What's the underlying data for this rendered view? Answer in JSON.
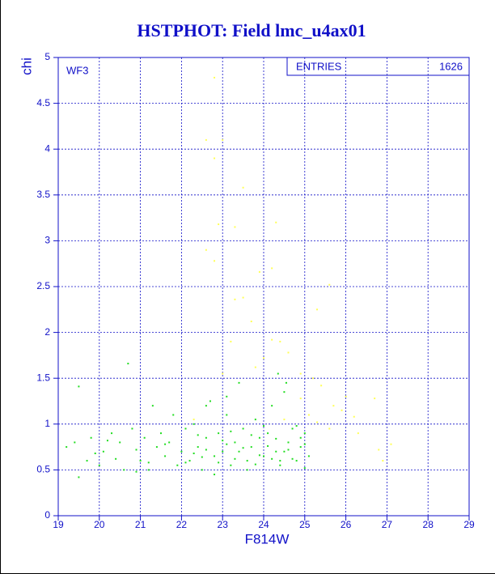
{
  "chart_data": {
    "type": "scatter",
    "title": "HSTPHOT: Field lmc_u4ax01",
    "x_label": "F814W",
    "y_label": "chi",
    "panel_label": "WF3",
    "stats_label": "ENTRIES",
    "stats_value": "1626",
    "xlim": [
      19,
      29
    ],
    "xticks": [
      19,
      20,
      21,
      22,
      23,
      24,
      25,
      26,
      27,
      28,
      29
    ],
    "ylim": [
      0,
      5
    ],
    "yticks": [
      0,
      0.5,
      1,
      1.5,
      2,
      2.5,
      3,
      3.5,
      4,
      4.5,
      5
    ],
    "grid": true,
    "axis_color": "#1010c8",
    "series": [
      {
        "color": "#22dd22",
        "x": [
          19.2,
          19.4,
          19.5,
          19.5,
          19.7,
          19.8,
          20.0,
          20.1,
          20.3,
          20.4,
          20.5,
          20.6,
          20.7,
          20.8,
          20.9,
          21.0,
          21.1,
          21.2,
          21.3,
          21.4,
          21.5,
          21.6,
          21.7,
          21.8,
          21.9,
          22.0,
          22.1,
          22.2,
          22.3,
          22.4,
          22.5,
          22.6,
          22.7,
          22.8,
          22.9,
          23.0,
          23.1,
          23.2,
          23.3,
          23.4,
          23.5,
          23.6,
          23.7,
          23.8,
          23.9,
          24.0,
          24.1,
          24.2,
          24.3,
          24.4,
          24.5,
          24.6,
          24.7,
          24.8,
          24.9,
          25.0,
          25.1,
          22.3,
          22.6,
          22.9,
          23.1,
          23.3,
          23.5,
          23.7,
          23.9,
          24.1,
          24.3,
          24.5,
          24.7,
          24.9,
          25.0,
          22.4,
          22.8,
          23.2,
          23.6,
          24.0,
          24.4,
          24.8,
          22.1,
          22.5,
          23.0,
          23.4,
          23.8,
          24.2,
          24.6,
          25.0,
          21.2,
          21.6,
          20.9,
          20.2,
          19.9,
          24.35,
          24.55,
          23.1,
          22.6
        ],
        "values": [
          0.75,
          0.8,
          1.41,
          0.42,
          0.6,
          0.85,
          0.55,
          0.7,
          0.9,
          0.62,
          0.8,
          0.5,
          1.66,
          0.95,
          0.72,
          0.6,
          0.85,
          0.5,
          1.2,
          0.75,
          0.9,
          0.65,
          0.8,
          1.1,
          0.55,
          0.7,
          0.95,
          0.6,
          1.0,
          0.75,
          0.5,
          0.85,
          1.25,
          0.65,
          0.9,
          0.7,
          1.1,
          0.55,
          0.8,
          1.45,
          0.95,
          0.6,
          0.75,
          1.05,
          0.85,
          0.65,
          0.9,
          1.2,
          0.7,
          0.55,
          1.35,
          0.8,
          0.95,
          0.6,
          0.75,
          0.9,
          0.65,
          0.68,
          0.72,
          0.58,
          0.78,
          0.62,
          0.74,
          0.88,
          0.66,
          0.76,
          0.84,
          0.7,
          0.62,
          0.85,
          0.52,
          0.88,
          0.45,
          0.92,
          0.5,
          0.98,
          0.6,
          0.98,
          0.58,
          0.64,
          0.82,
          0.7,
          0.56,
          0.62,
          0.72,
          0.78,
          0.58,
          0.78,
          0.48,
          0.82,
          0.68,
          1.55,
          1.45,
          1.3,
          1.2
        ]
      },
      {
        "color": "#ffff55",
        "x": [
          22.8,
          22.6,
          23.0,
          22.8,
          23.5,
          22.9,
          23.3,
          24.3,
          22.6,
          22.8,
          23.9,
          24.2,
          23.3,
          23.5,
          23.7,
          25.6,
          25.3,
          24.2,
          24.4,
          24.0,
          23.8,
          24.6,
          24.9,
          25.2,
          25.4,
          25.7,
          25.9,
          26.2,
          26.7,
          26.8,
          27.1,
          25.3,
          25.6,
          26.0,
          24.9,
          25.1,
          24.5,
          23.2,
          22.3,
          23.0,
          26.3,
          26.9
        ],
        "values": [
          4.78,
          4.1,
          4.1,
          3.9,
          3.58,
          3.18,
          3.15,
          3.2,
          2.9,
          2.78,
          2.66,
          2.7,
          2.36,
          2.38,
          2.12,
          2.52,
          2.25,
          1.92,
          1.9,
          1.72,
          1.62,
          1.78,
          1.55,
          1.5,
          1.42,
          1.2,
          1.15,
          1.08,
          1.28,
          0.72,
          0.78,
          1.02,
          0.95,
          1.3,
          1.28,
          1.1,
          1.05,
          1.9,
          1.05,
          1.55,
          0.9,
          0.6
        ]
      }
    ]
  }
}
